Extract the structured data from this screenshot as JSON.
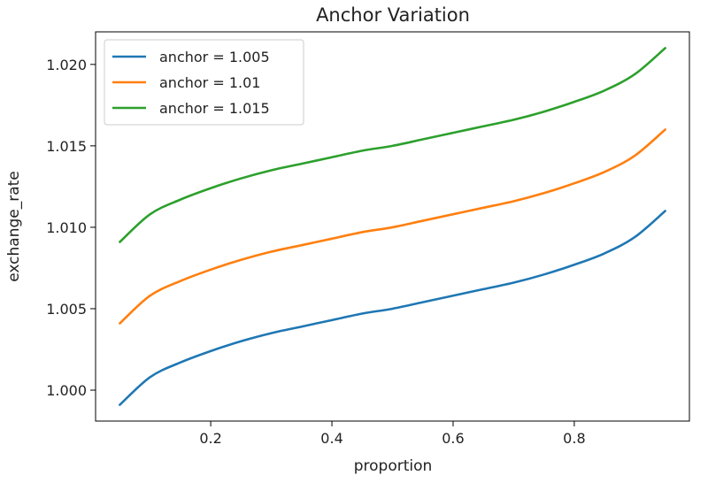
{
  "chart_data": {
    "type": "line",
    "title": "Anchor Variation",
    "xlabel": "proportion",
    "ylabel": "exchange_rate",
    "xlim": [
      0.01,
      0.99
    ],
    "ylim": [
      0.9981,
      1.022
    ],
    "xticks": [
      0.2,
      0.4,
      0.6,
      0.8
    ],
    "xtick_labels": [
      "0.2",
      "0.4",
      "0.6",
      "0.8"
    ],
    "yticks": [
      1.0,
      1.005,
      1.01,
      1.015,
      1.02
    ],
    "ytick_labels": [
      "1.000",
      "1.005",
      "1.010",
      "1.015",
      "1.020"
    ],
    "grid": false,
    "legend_position": "top-left",
    "x": [
      0.05,
      0.1,
      0.15,
      0.2,
      0.25,
      0.3,
      0.35,
      0.4,
      0.45,
      0.5,
      0.55,
      0.6,
      0.65,
      0.7,
      0.75,
      0.8,
      0.85,
      0.9,
      0.95
    ],
    "series": [
      {
        "name": "anchor = 1.005",
        "color": "#1f77b4",
        "values": [
          0.9991,
          1.0008,
          1.0017,
          1.0024,
          1.003,
          1.0035,
          1.0039,
          1.0043,
          1.0047,
          1.005,
          1.0054,
          1.0058,
          1.0062,
          1.0066,
          1.0071,
          1.0077,
          1.0084,
          1.0094,
          1.011
        ]
      },
      {
        "name": "anchor = 1.01",
        "color": "#ff7f0e",
        "values": [
          1.0041,
          1.0058,
          1.0067,
          1.0074,
          1.008,
          1.0085,
          1.0089,
          1.0093,
          1.0097,
          1.01,
          1.0104,
          1.0108,
          1.0112,
          1.0116,
          1.0121,
          1.0127,
          1.0134,
          1.0144,
          1.016
        ]
      },
      {
        "name": "anchor = 1.015",
        "color": "#2ca02c",
        "values": [
          1.0091,
          1.0108,
          1.0117,
          1.0124,
          1.013,
          1.0135,
          1.0139,
          1.0143,
          1.0147,
          1.015,
          1.0154,
          1.0158,
          1.0162,
          1.0166,
          1.0171,
          1.0177,
          1.0184,
          1.0194,
          1.021
        ]
      }
    ]
  }
}
